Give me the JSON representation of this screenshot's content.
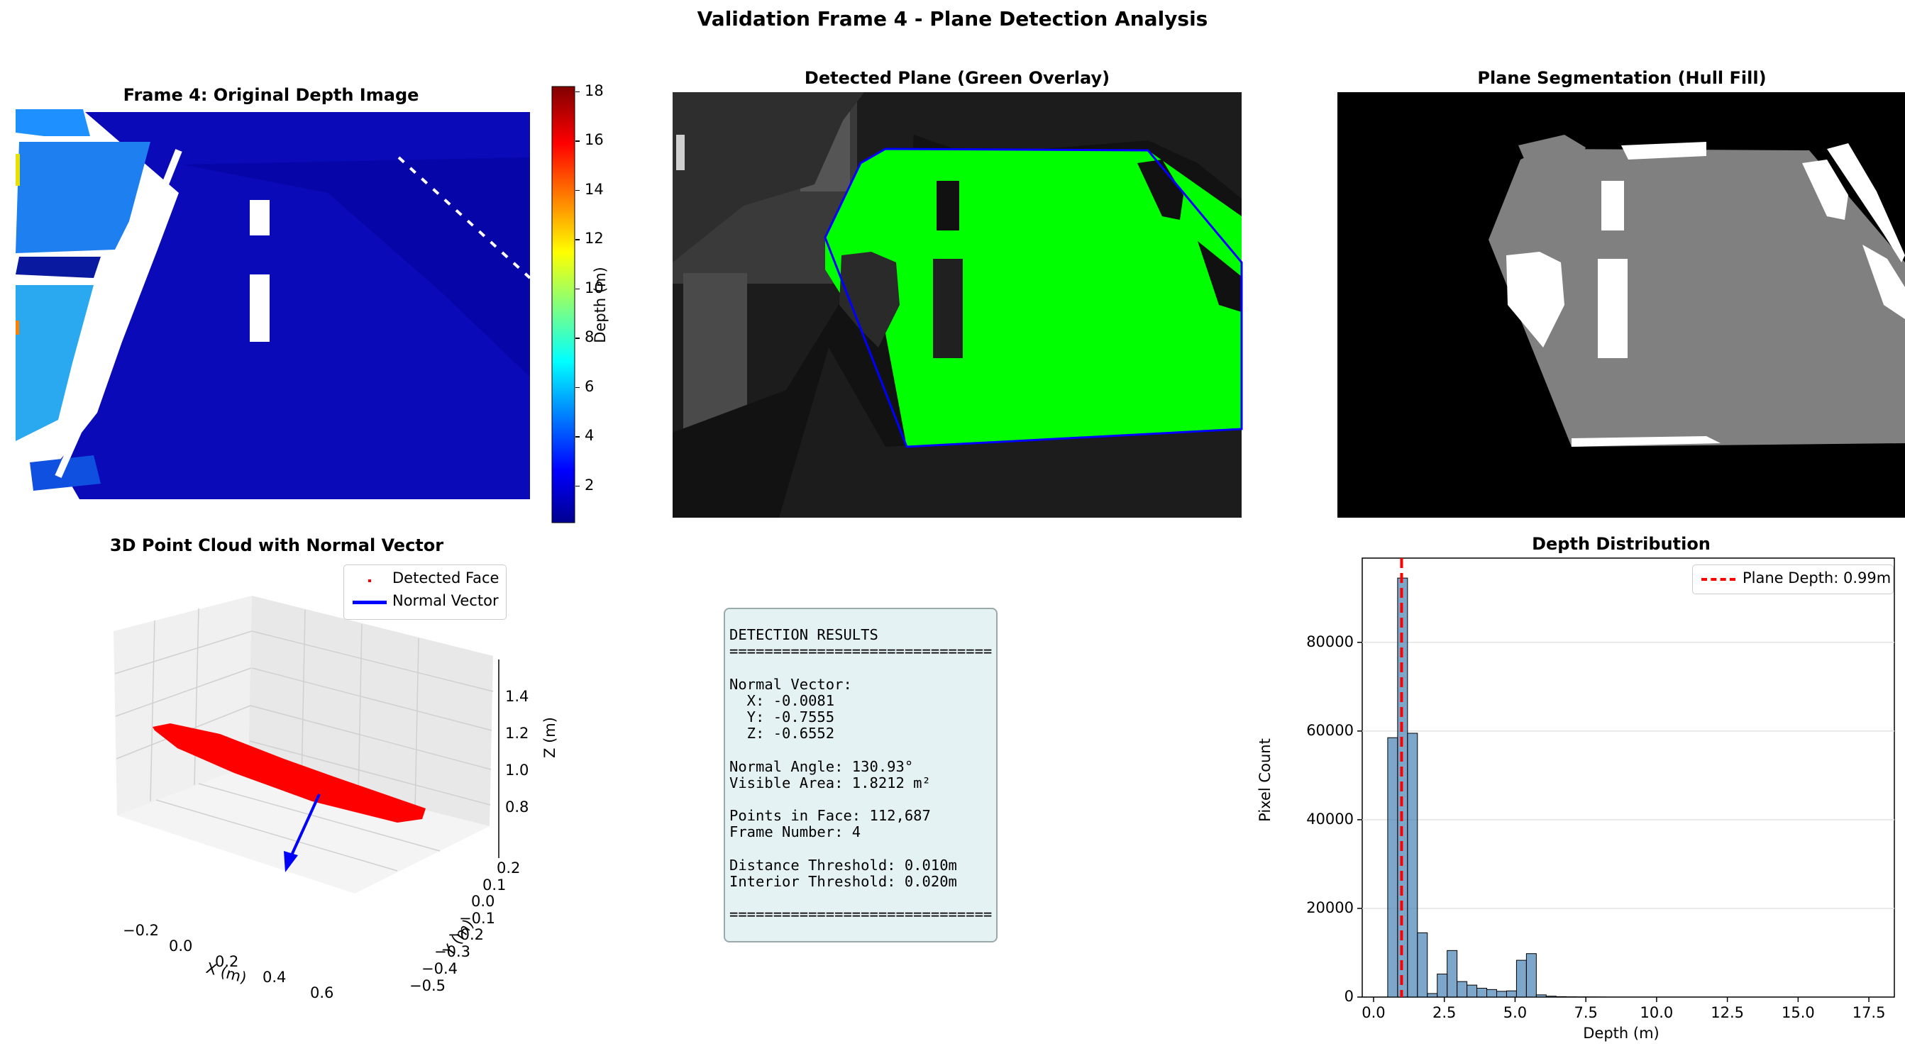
{
  "figure": {
    "suptitle": "Validation Frame 4 - Plane Detection Analysis"
  },
  "panels": {
    "depth_image": {
      "title": "Frame 4: Original Depth Image",
      "colorbar_label": "Depth (m)",
      "colorbar_ticks": [
        "2",
        "4",
        "6",
        "8",
        "10",
        "12",
        "14",
        "16",
        "18"
      ],
      "colormap": "jet"
    },
    "overlay": {
      "title": "Detected Plane (Green Overlay)",
      "plane_color": "#00ff00",
      "hull_color": "#0000ff"
    },
    "segmentation": {
      "title": "Plane Segmentation (Hull Fill)",
      "fill_color": "#808080"
    },
    "pointcloud": {
      "title": "3D Point Cloud with Normal Vector",
      "legend": {
        "face": "Detected Face",
        "normal": "Normal Vector"
      },
      "xlabel": "X (m)",
      "ylabel": "Y (m)",
      "zlabel": "Z (m)",
      "xticks": [
        "−0.2",
        "0.0",
        "0.2",
        "0.4",
        "0.6"
      ],
      "yticks": [
        "0.2",
        "0.1",
        "0.0",
        "−0.1",
        "−0.2",
        "−0.3",
        "−0.4",
        "−0.5"
      ],
      "zticks": [
        "1.4",
        "1.2",
        "1.0",
        "0.8"
      ],
      "face_color": "#ff0000",
      "normal_color": "#0000ff"
    },
    "results": {
      "lines": [
        "DETECTION RESULTS",
        "==============================",
        "",
        "Normal Vector:",
        "  X: -0.0081",
        "  Y: -0.7555",
        "  Z: -0.6552",
        "",
        "Normal Angle: 130.93°",
        "Visible Area: 1.8212 m²",
        "",
        "Points in Face: 112,687",
        "Frame Number: 4",
        "",
        "Distance Threshold: 0.010m",
        "Interior Threshold: 0.020m",
        "",
        "=============================="
      ]
    }
  },
  "chart_data": {
    "type": "bar",
    "title": "Depth Distribution",
    "xlabel": "Depth (m)",
    "ylabel": "Pixel Count",
    "xlim": [
      -0.4,
      18.4
    ],
    "ylim": [
      0,
      99000
    ],
    "xticks": [
      "0.0",
      "2.5",
      "5.0",
      "7.5",
      "10.0",
      "12.5",
      "15.0",
      "17.5"
    ],
    "yticks": [
      "0",
      "20000",
      "40000",
      "60000",
      "80000"
    ],
    "grid": "y",
    "bar_color": "#4682b4",
    "bin_start": 0.5,
    "bin_width": 0.35,
    "values": [
      58500,
      94500,
      59500,
      14500,
      800,
      5200,
      10500,
      3500,
      2700,
      2000,
      1700,
      1300,
      1400,
      8300,
      9800,
      500,
      200,
      100,
      60,
      40,
      30,
      20
    ],
    "vline": {
      "x": 0.99,
      "label": "Plane Depth: 0.99m",
      "color": "#ff0000"
    },
    "legend": "top-right"
  }
}
